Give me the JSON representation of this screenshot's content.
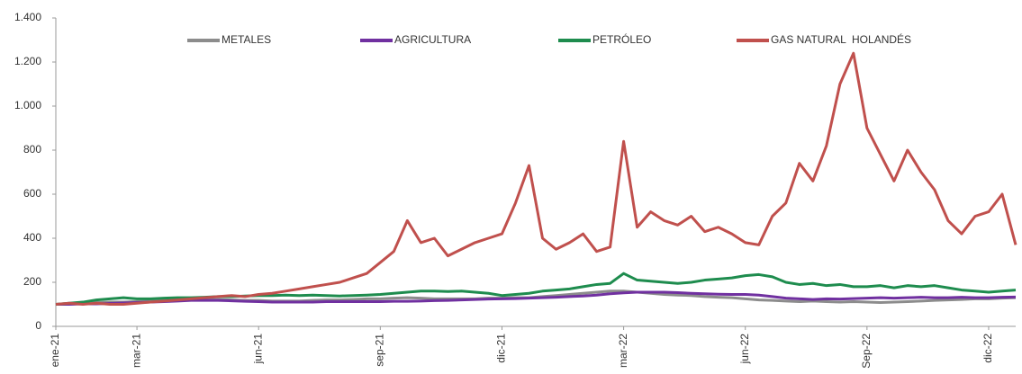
{
  "chart_data": {
    "type": "line",
    "categories": [
      "ene-21",
      null,
      null,
      null,
      null,
      null,
      "mar-21",
      null,
      null,
      null,
      null,
      null,
      null,
      null,
      null,
      "jun-21",
      null,
      null,
      null,
      null,
      null,
      null,
      null,
      null,
      "sep-21",
      null,
      null,
      null,
      null,
      null,
      null,
      null,
      null,
      "dic-21",
      null,
      null,
      null,
      null,
      null,
      null,
      null,
      null,
      "mar-22",
      null,
      null,
      null,
      null,
      null,
      null,
      null,
      null,
      "jun-22",
      null,
      null,
      null,
      null,
      null,
      null,
      null,
      null,
      "Sep-22",
      null,
      null,
      null,
      null,
      null,
      null,
      null,
      null,
      "dic-22",
      null,
      null
    ],
    "series": [
      {
        "name": "METALES",
        "color": "#8c8c8c",
        "values": [
          100,
          102,
          105,
          108,
          110,
          110,
          112,
          115,
          118,
          120,
          120,
          122,
          122,
          120,
          118,
          118,
          115,
          115,
          115,
          118,
          120,
          120,
          122,
          125,
          125,
          128,
          130,
          128,
          125,
          125,
          125,
          125,
          128,
          128,
          130,
          130,
          135,
          140,
          145,
          150,
          155,
          160,
          160,
          155,
          150,
          145,
          142,
          140,
          135,
          132,
          130,
          125,
          120,
          118,
          115,
          112,
          115,
          112,
          110,
          112,
          110,
          108,
          110,
          112,
          115,
          118,
          120,
          122,
          125,
          125,
          128,
          130
        ]
      },
      {
        "name": "AGRICULTURA",
        "color": "#7030a0",
        "values": [
          100,
          100,
          102,
          102,
          104,
          106,
          108,
          110,
          112,
          115,
          118,
          118,
          118,
          116,
          114,
          112,
          110,
          110,
          110,
          110,
          112,
          112,
          112,
          112,
          112,
          114,
          114,
          115,
          117,
          118,
          120,
          122,
          124,
          125,
          126,
          128,
          130,
          132,
          135,
          138,
          142,
          148,
          152,
          155,
          155,
          155,
          153,
          150,
          148,
          146,
          145,
          145,
          142,
          135,
          128,
          125,
          122,
          125,
          124,
          126,
          128,
          130,
          128,
          130,
          132,
          130,
          130,
          132,
          130,
          130,
          132,
          133
        ]
      },
      {
        "name": "PETRÓLEO",
        "color": "#1e8c4e",
        "values": [
          100,
          105,
          110,
          120,
          125,
          130,
          125,
          125,
          128,
          130,
          130,
          132,
          135,
          135,
          138,
          140,
          140,
          142,
          140,
          142,
          140,
          138,
          140,
          142,
          145,
          150,
          155,
          160,
          160,
          158,
          160,
          155,
          150,
          140,
          145,
          150,
          160,
          165,
          170,
          180,
          190,
          195,
          240,
          210,
          205,
          200,
          195,
          200,
          210,
          215,
          220,
          230,
          235,
          225,
          200,
          190,
          195,
          185,
          190,
          180,
          180,
          185,
          175,
          185,
          180,
          185,
          175,
          165,
          160,
          155,
          160,
          165
        ]
      },
      {
        "name": "GAS NATURAL  HOLANDÉS",
        "color": "#c0504d",
        "values": [
          100,
          105,
          100,
          105,
          100,
          100,
          105,
          110,
          115,
          120,
          125,
          130,
          135,
          140,
          135,
          145,
          150,
          160,
          170,
          180,
          190,
          200,
          220,
          240,
          290,
          340,
          480,
          380,
          400,
          320,
          350,
          380,
          400,
          420,
          560,
          730,
          400,
          350,
          380,
          420,
          340,
          360,
          840,
          450,
          520,
          480,
          460,
          500,
          430,
          450,
          420,
          380,
          370,
          500,
          560,
          740,
          660,
          820,
          1100,
          1240,
          900,
          780,
          660,
          800,
          700,
          620,
          480,
          420,
          500,
          520,
          600,
          370
        ]
      }
    ],
    "ylim": [
      0,
      1400
    ],
    "yticks": [
      0,
      200,
      400,
      600,
      800,
      {
        "value": 1000,
        "label": "1.000"
      },
      {
        "value": 1200,
        "label": "1.200"
      },
      {
        "value": 1400,
        "label": "1.400"
      }
    ],
    "grid": false,
    "legend": "top"
  }
}
